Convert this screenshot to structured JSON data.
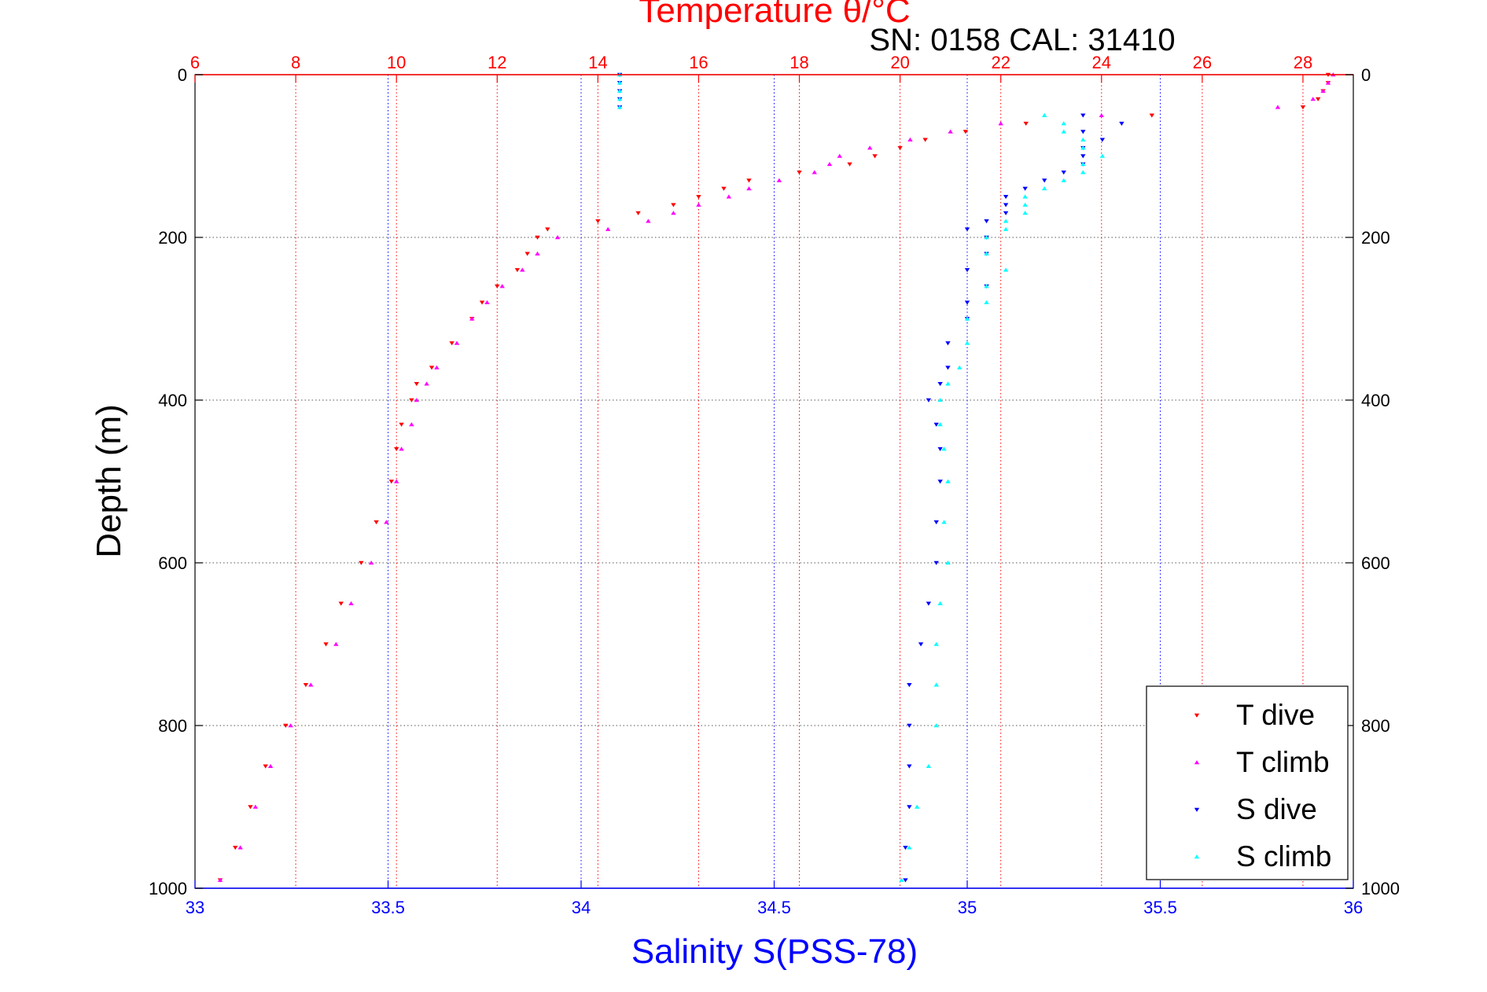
{
  "chart_data": {
    "type": "scatter",
    "title": "Temperature θ/°C",
    "subtitle": "SN: 0158  CAL: 31410",
    "ylabel": "Depth (m)",
    "xlabel_bottom": "Salinity S(PSS-78)",
    "y_axis": {
      "ylim": [
        0,
        1000
      ],
      "reversed": true,
      "ticks": [
        0,
        200,
        400,
        600,
        800,
        1000
      ],
      "tick_labels": [
        "0",
        "200",
        "400",
        "600",
        "800",
        "1000"
      ]
    },
    "x_top_axis": {
      "label": "Temperature θ/°C",
      "xlim": [
        6,
        29
      ],
      "ticks": [
        6,
        8,
        10,
        12,
        14,
        16,
        18,
        20,
        22,
        24,
        26,
        28
      ],
      "tick_labels": [
        "6",
        "8",
        "10",
        "12",
        "14",
        "16",
        "18",
        "20",
        "22",
        "24",
        "26",
        "28"
      ],
      "color": "#ff0000",
      "grid": true
    },
    "x_bottom_axis": {
      "label": "Salinity S(PSS-78)",
      "xlim": [
        33,
        36
      ],
      "ticks": [
        33,
        33.5,
        34,
        34.5,
        35,
        35.5,
        36
      ],
      "tick_labels": [
        "33",
        "33.5",
        "34",
        "34.5",
        "35",
        "35.5",
        "36"
      ],
      "color": "#0000ff",
      "grid": true
    },
    "legend_position": "bottom-right",
    "series": [
      {
        "name": "T dive",
        "axis": "top",
        "marker": "triangle-down",
        "color": "#ff0000",
        "depth": [
          0,
          10,
          20,
          30,
          40,
          50,
          60,
          70,
          80,
          90,
          100,
          110,
          120,
          130,
          140,
          150,
          160,
          170,
          180,
          190,
          200,
          220,
          240,
          260,
          280,
          300,
          330,
          360,
          380,
          400,
          430,
          460,
          500,
          550,
          600,
          650,
          700,
          750,
          800,
          850,
          900,
          950,
          990
        ],
        "value": [
          28.5,
          28.5,
          28.4,
          28.3,
          28.0,
          25.0,
          22.5,
          21.3,
          20.5,
          20.0,
          19.5,
          19.0,
          18.0,
          17.0,
          16.5,
          16.0,
          15.5,
          14.8,
          14.0,
          13.0,
          12.8,
          12.6,
          12.4,
          12.0,
          11.7,
          11.5,
          11.1,
          10.7,
          10.4,
          10.3,
          10.1,
          10.0,
          9.9,
          9.6,
          9.3,
          8.9,
          8.6,
          8.2,
          7.8,
          7.4,
          7.1,
          6.8,
          6.5
        ]
      },
      {
        "name": "T climb",
        "axis": "top",
        "marker": "triangle-up",
        "color": "#ff00ff",
        "depth": [
          0,
          10,
          20,
          30,
          40,
          50,
          60,
          70,
          80,
          90,
          100,
          110,
          120,
          130,
          140,
          150,
          160,
          170,
          180,
          190,
          200,
          220,
          240,
          260,
          280,
          300,
          330,
          360,
          380,
          400,
          430,
          460,
          500,
          550,
          600,
          650,
          700,
          750,
          800,
          850,
          900,
          950,
          990
        ],
        "value": [
          28.6,
          28.5,
          28.4,
          28.2,
          27.5,
          24.0,
          22.0,
          21.0,
          20.2,
          19.4,
          18.8,
          18.6,
          18.3,
          17.6,
          17.0,
          16.6,
          16.0,
          15.5,
          15.0,
          14.2,
          13.2,
          12.8,
          12.5,
          12.1,
          11.8,
          11.5,
          11.2,
          10.8,
          10.6,
          10.4,
          10.3,
          10.1,
          10.0,
          9.8,
          9.5,
          9.1,
          8.8,
          8.3,
          7.9,
          7.5,
          7.2,
          6.9,
          6.5
        ]
      },
      {
        "name": "S dive",
        "axis": "bottom",
        "marker": "triangle-down",
        "color": "#0000ff",
        "depth": [
          0,
          10,
          20,
          30,
          40,
          50,
          60,
          70,
          80,
          90,
          100,
          110,
          120,
          130,
          140,
          150,
          160,
          170,
          180,
          190,
          200,
          220,
          240,
          260,
          280,
          300,
          330,
          360,
          380,
          400,
          430,
          460,
          500,
          550,
          600,
          650,
          700,
          750,
          800,
          850,
          900,
          950,
          990
        ],
        "value": [
          34.1,
          34.1,
          34.1,
          34.1,
          34.1,
          35.3,
          35.4,
          35.3,
          35.35,
          35.3,
          35.3,
          35.3,
          35.25,
          35.2,
          35.15,
          35.1,
          35.1,
          35.1,
          35.05,
          35.0,
          35.05,
          35.05,
          35.0,
          35.05,
          35.0,
          35.0,
          34.95,
          34.95,
          34.93,
          34.9,
          34.92,
          34.93,
          34.93,
          34.92,
          34.92,
          34.9,
          34.88,
          34.85,
          34.85,
          34.85,
          34.85,
          34.84,
          34.84
        ]
      },
      {
        "name": "S climb",
        "axis": "bottom",
        "marker": "triangle-up",
        "color": "#00ffff",
        "depth": [
          0,
          10,
          20,
          30,
          40,
          50,
          60,
          70,
          80,
          90,
          100,
          110,
          120,
          130,
          140,
          150,
          160,
          170,
          180,
          190,
          200,
          220,
          240,
          260,
          280,
          300,
          330,
          360,
          380,
          400,
          430,
          460,
          500,
          550,
          600,
          650,
          700,
          750,
          800,
          850,
          900,
          950,
          990
        ],
        "value": [
          34.1,
          34.1,
          34.1,
          34.1,
          34.1,
          35.2,
          35.25,
          35.25,
          35.3,
          35.3,
          35.35,
          35.3,
          35.3,
          35.25,
          35.2,
          35.15,
          35.15,
          35.15,
          35.1,
          35.1,
          35.05,
          35.05,
          35.1,
          35.05,
          35.05,
          35.0,
          35.0,
          34.98,
          34.95,
          34.93,
          34.93,
          34.94,
          34.95,
          34.94,
          34.95,
          34.93,
          34.92,
          34.92,
          34.92,
          34.9,
          34.87,
          34.85,
          34.83
        ]
      }
    ]
  }
}
